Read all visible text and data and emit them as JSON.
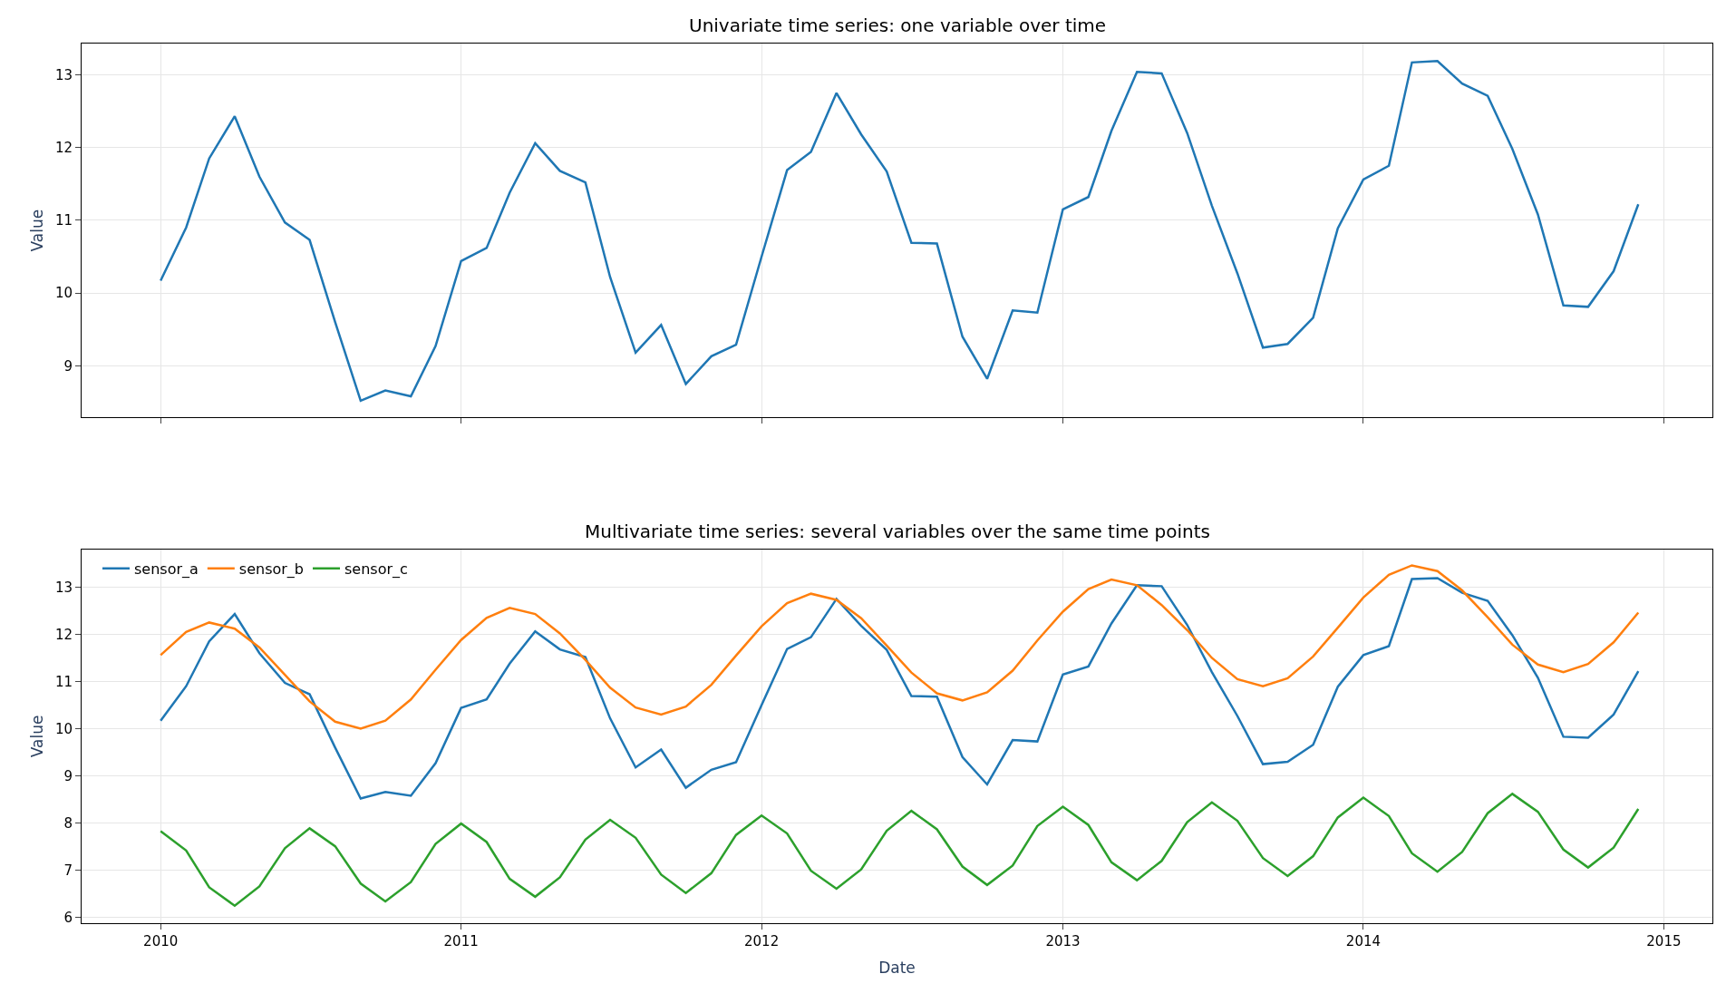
{
  "chart_data": [
    {
      "type": "line",
      "title": "Univariate time series: one variable over time",
      "ylabel": "Value",
      "x": [
        "2010-01",
        "2010-02",
        "2010-03",
        "2010-04",
        "2010-05",
        "2010-06",
        "2010-07",
        "2010-08",
        "2010-09",
        "2010-10",
        "2010-11",
        "2010-12",
        "2011-01",
        "2011-02",
        "2011-03",
        "2011-04",
        "2011-05",
        "2011-06",
        "2011-07",
        "2011-08",
        "2011-09",
        "2011-10",
        "2011-11",
        "2011-12",
        "2012-01",
        "2012-02",
        "2012-03",
        "2012-04",
        "2012-05",
        "2012-06",
        "2012-07",
        "2012-08",
        "2012-09",
        "2012-10",
        "2012-11",
        "2012-12",
        "2013-01",
        "2013-02",
        "2013-03",
        "2013-04",
        "2013-05",
        "2013-06",
        "2013-07",
        "2013-08",
        "2013-09",
        "2013-10",
        "2013-11",
        "2013-12",
        "2014-01",
        "2014-02",
        "2014-03",
        "2014-04",
        "2014-05",
        "2014-06",
        "2014-07",
        "2014-08",
        "2014-09",
        "2014-10",
        "2014-11",
        "2014-12"
      ],
      "series": [
        {
          "color": "#1f77b4",
          "values": [
            10.17,
            10.9,
            11.85,
            12.43,
            11.6,
            10.97,
            10.73,
            9.6,
            8.52,
            8.66,
            8.58,
            9.27,
            10.44,
            10.62,
            11.38,
            12.06,
            11.68,
            11.52,
            10.22,
            9.18,
            9.56,
            8.75,
            9.13,
            9.29,
            10.5,
            11.69,
            11.94,
            12.75,
            12.18,
            11.67,
            10.69,
            10.68,
            9.4,
            8.82,
            9.76,
            9.73,
            11.15,
            11.32,
            12.23,
            13.04,
            13.02,
            12.2,
            11.2,
            10.27,
            9.25,
            9.3,
            9.66,
            10.89,
            11.56,
            11.75,
            13.17,
            13.19,
            12.88,
            12.71,
            11.98,
            11.08,
            9.83,
            9.81,
            10.3,
            11.22
          ]
        }
      ],
      "xlim": [
        "2009-09-27",
        "2015-03-01"
      ],
      "xticks": [
        {
          "value": "2010-01-01",
          "label": null
        },
        {
          "value": "2011-01-01",
          "label": null
        },
        {
          "value": "2012-01-01",
          "label": null
        },
        {
          "value": "2013-01-01",
          "label": null
        },
        {
          "value": "2014-01-01",
          "label": null
        },
        {
          "value": "2015-01-01",
          "label": null
        }
      ],
      "ylim": [
        8.29,
        13.43
      ],
      "yticks": [
        9,
        10,
        11,
        12,
        13
      ],
      "grid": true,
      "tick_labels": "y",
      "line_style": "solid"
    },
    {
      "type": "line",
      "title": "Multivariate time series: several variables over the same time points",
      "xlabel": "Date",
      "ylabel": "Value",
      "x": [
        "2010-01",
        "2010-02",
        "2010-03",
        "2010-04",
        "2010-05",
        "2010-06",
        "2010-07",
        "2010-08",
        "2010-09",
        "2010-10",
        "2010-11",
        "2010-12",
        "2011-01",
        "2011-02",
        "2011-03",
        "2011-04",
        "2011-05",
        "2011-06",
        "2011-07",
        "2011-08",
        "2011-09",
        "2011-10",
        "2011-11",
        "2011-12",
        "2012-01",
        "2012-02",
        "2012-03",
        "2012-04",
        "2012-05",
        "2012-06",
        "2012-07",
        "2012-08",
        "2012-09",
        "2012-10",
        "2012-11",
        "2012-12",
        "2013-01",
        "2013-02",
        "2013-03",
        "2013-04",
        "2013-05",
        "2013-06",
        "2013-07",
        "2013-08",
        "2013-09",
        "2013-10",
        "2013-11",
        "2013-12",
        "2014-01",
        "2014-02",
        "2014-03",
        "2014-04",
        "2014-05",
        "2014-06",
        "2014-07",
        "2014-08",
        "2014-09",
        "2014-10",
        "2014-11",
        "2014-12"
      ],
      "series": [
        {
          "name": "sensor_a",
          "color": "#1f77b4",
          "values": [
            10.17,
            10.9,
            11.85,
            12.43,
            11.6,
            10.97,
            10.73,
            9.6,
            8.52,
            8.66,
            8.58,
            9.27,
            10.44,
            10.62,
            11.38,
            12.06,
            11.68,
            11.52,
            10.22,
            9.18,
            9.56,
            8.75,
            9.13,
            9.29,
            10.5,
            11.69,
            11.94,
            12.75,
            12.18,
            11.67,
            10.69,
            10.68,
            9.4,
            8.82,
            9.76,
            9.73,
            11.15,
            11.32,
            12.23,
            13.04,
            13.02,
            12.2,
            11.2,
            10.27,
            9.25,
            9.3,
            9.66,
            10.89,
            11.56,
            11.75,
            13.17,
            13.19,
            12.88,
            12.71,
            11.98,
            11.08,
            9.83,
            9.81,
            10.3,
            11.22
          ]
        },
        {
          "name": "sensor_b",
          "color": "#ff7f0e",
          "values": [
            11.56,
            12.05,
            12.25,
            12.12,
            11.72,
            11.14,
            10.58,
            10.15,
            10.0,
            10.17,
            10.62,
            11.25,
            11.88,
            12.35,
            12.56,
            12.43,
            12.02,
            11.46,
            10.87,
            10.45,
            10.3,
            10.47,
            10.93,
            11.55,
            12.17,
            12.66,
            12.86,
            12.73,
            12.34,
            11.76,
            11.19,
            10.75,
            10.6,
            10.77,
            11.23,
            11.87,
            12.48,
            12.96,
            13.16,
            13.04,
            12.62,
            12.09,
            11.5,
            11.05,
            10.9,
            11.07,
            11.53,
            12.14,
            12.78,
            13.26,
            13.46,
            13.34,
            12.93,
            12.36,
            11.78,
            11.36,
            11.2,
            11.37,
            11.83,
            12.46
          ]
        },
        {
          "name": "sensor_c",
          "color": "#2ca02c",
          "values": [
            7.83,
            7.42,
            6.64,
            6.25,
            6.66,
            7.47,
            7.89,
            7.51,
            6.72,
            6.34,
            6.75,
            7.56,
            7.99,
            7.6,
            6.82,
            6.44,
            6.85,
            7.65,
            8.07,
            7.69,
            6.91,
            6.52,
            6.94,
            7.75,
            8.16,
            7.78,
            6.99,
            6.61,
            7.02,
            7.84,
            8.26,
            7.87,
            7.08,
            6.69,
            7.1,
            7.94,
            8.35,
            7.96,
            7.17,
            6.79,
            7.2,
            8.02,
            8.44,
            8.05,
            7.26,
            6.88,
            7.3,
            8.12,
            8.54,
            8.15,
            7.36,
            6.97,
            7.39,
            8.21,
            8.62,
            8.24,
            7.44,
            7.06,
            7.48,
            8.3
          ]
        }
      ],
      "xlim": [
        "2009-09-27",
        "2015-03-01"
      ],
      "xticks": [
        {
          "value": "2010-01-01",
          "label": "2010"
        },
        {
          "value": "2011-01-01",
          "label": "2011"
        },
        {
          "value": "2012-01-01",
          "label": "2012"
        },
        {
          "value": "2013-01-01",
          "label": "2013"
        },
        {
          "value": "2014-01-01",
          "label": "2014"
        },
        {
          "value": "2015-01-01",
          "label": "2015"
        }
      ],
      "ylim": [
        5.88,
        13.8
      ],
      "yticks": [
        6,
        7,
        8,
        9,
        10,
        11,
        12,
        13
      ],
      "grid": true,
      "legend": "top left",
      "line_style": "solid"
    }
  ]
}
